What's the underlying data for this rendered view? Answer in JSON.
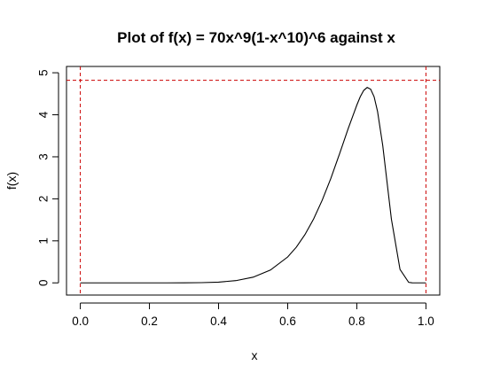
{
  "chart_data": {
    "type": "line",
    "title": "Plot of f(x) = 70x^9(1-x^10)^6 against x",
    "xlabel": "x",
    "ylabel": "f(x)",
    "xlim": [
      -0.04,
      1.04
    ],
    "ylim": [
      -0.29,
      5.15
    ],
    "x_ticks": [
      0.0,
      0.2,
      0.4,
      0.6,
      0.8,
      1.0
    ],
    "x_tick_labels": [
      "0.0",
      "0.2",
      "0.4",
      "0.6",
      "0.8",
      "1.0"
    ],
    "y_ticks": [
      0,
      1,
      2,
      3,
      4,
      5
    ],
    "y_tick_labels": [
      "0",
      "1",
      "2",
      "3",
      "4",
      "5"
    ],
    "grid": false,
    "series": [
      {
        "color": "#000000",
        "x": [
          0.0,
          0.05,
          0.1,
          0.15,
          0.2,
          0.25,
          0.3,
          0.35,
          0.4,
          0.45,
          0.5,
          0.55,
          0.6,
          0.625,
          0.65,
          0.675,
          0.7,
          0.725,
          0.75,
          0.775,
          0.8,
          0.81,
          0.82,
          0.83,
          0.84,
          0.85,
          0.86,
          0.875,
          0.9,
          0.925,
          0.95,
          0.96,
          0.975,
          1.0
        ],
        "y": [
          0.0,
          0.0,
          0.0,
          0.0,
          0.0,
          0.0,
          0.001,
          0.005,
          0.018,
          0.053,
          0.135,
          0.305,
          0.616,
          0.85,
          1.15,
          1.52,
          1.97,
          2.49,
          3.07,
          3.67,
          4.23,
          4.43,
          4.58,
          4.65,
          4.61,
          4.43,
          4.08,
          3.27,
          1.52,
          0.32,
          0.013,
          0.001,
          0.0,
          0.0
        ]
      }
    ],
    "reference_lines": [
      {
        "orientation": "vertical",
        "value": 0,
        "color": "#cc0000",
        "style": "dashed"
      },
      {
        "orientation": "vertical",
        "value": 1,
        "color": "#cc0000",
        "style": "dashed"
      },
      {
        "orientation": "horizontal",
        "value": 4.82,
        "color": "#cc0000",
        "style": "dashed"
      }
    ]
  }
}
